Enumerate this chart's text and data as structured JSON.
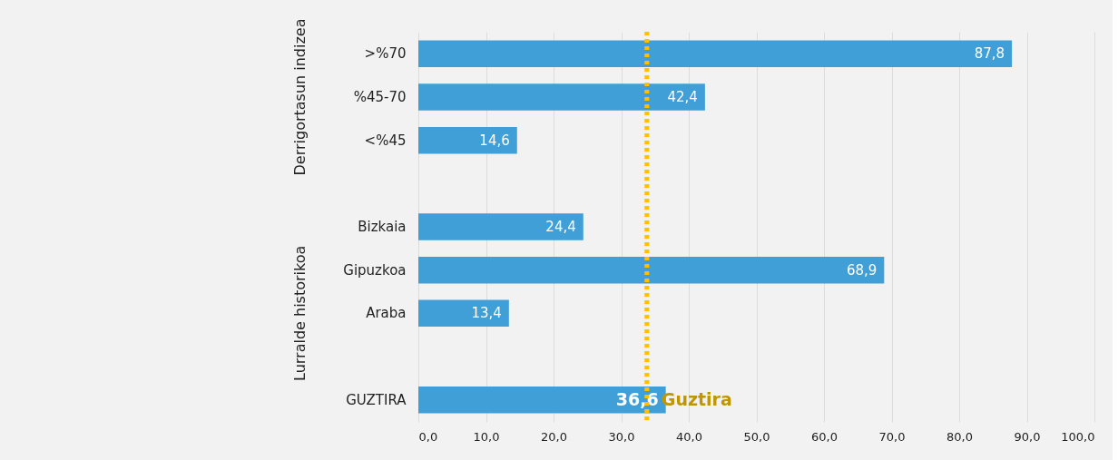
{
  "chart_data": {
    "type": "bar",
    "orientation": "horizontal",
    "categories": [
      ">%70",
      "%45-70",
      "<%45",
      null,
      "Bizkaia",
      "Gipuzkoa",
      "Araba",
      null,
      "GUZTIRA"
    ],
    "values": [
      87.8,
      42.4,
      14.6,
      null,
      24.4,
      68.9,
      13.4,
      null,
      36.6
    ],
    "value_labels": [
      "87,8",
      "42,4",
      "14,6",
      null,
      "24,4",
      "68,9",
      "13,4",
      null,
      "36,6"
    ],
    "color": "#409fd6",
    "xlim": [
      0,
      100
    ],
    "xticks": [
      {
        "value": 0,
        "label": "0,0"
      },
      {
        "value": 10,
        "label": "10,0"
      },
      {
        "value": 20,
        "label": "20,0"
      },
      {
        "value": 30,
        "label": "30,0"
      },
      {
        "value": 40,
        "label": "40,0"
      },
      {
        "value": 50,
        "label": "50,0"
      },
      {
        "value": 60,
        "label": "60,0"
      },
      {
        "value": 70,
        "label": "70,0"
      },
      {
        "value": 80,
        "label": "80,0"
      },
      {
        "value": 90,
        "label": "90,0"
      },
      {
        "value": 100,
        "label": "100,0"
      }
    ],
    "grid": "x",
    "ref_lines": [
      {
        "axis": "x",
        "value": 33.8,
        "label": "Guztira",
        "color": "#ffc000",
        "line_style": "dotted"
      }
    ],
    "annotations": [
      "Derrigortasun indizea",
      "Lurralde historikoa"
    ]
  }
}
